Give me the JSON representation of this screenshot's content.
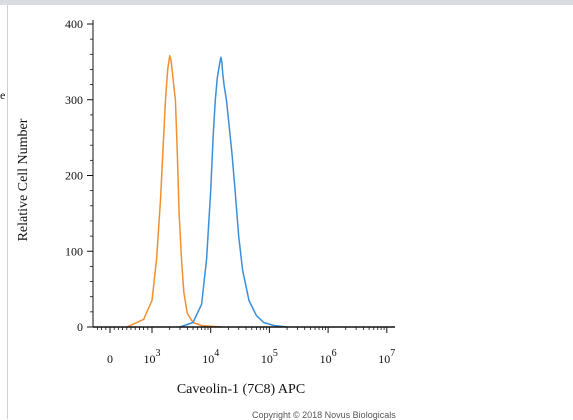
{
  "frame": {
    "edge_mark": "e"
  },
  "copyright": "Copyright © 2018 Novus Biologicals",
  "chart_data": {
    "type": "line",
    "title": "",
    "xlabel": "Caveolin-1 (7C8) APC",
    "ylabel": "Relative Cell Number",
    "x_scale": "log",
    "xlim": [
      -300,
      10000000
    ],
    "ylim": [
      0,
      400
    ],
    "grid": false,
    "legend": "none",
    "x_ticks": [
      {
        "value": 0,
        "base": "0",
        "exp": ""
      },
      {
        "value": 1000,
        "base": "10",
        "exp": "3"
      },
      {
        "value": 10000,
        "base": "10",
        "exp": "4"
      },
      {
        "value": 100000,
        "base": "10",
        "exp": "5"
      },
      {
        "value": 1000000,
        "base": "10",
        "exp": "6"
      },
      {
        "value": 10000000,
        "base": "10",
        "exp": "7"
      }
    ],
    "y_ticks": [
      0,
      100,
      200,
      300,
      400
    ],
    "series": [
      {
        "color": "#f0902f",
        "x": [
          400,
          800,
          1000,
          1200,
          1400,
          1550,
          1700,
          1850,
          2000,
          2100,
          2200,
          2350,
          2500,
          2700,
          2900,
          3200,
          3500,
          4000,
          5000,
          7000,
          10000,
          15000
        ],
        "y": [
          0,
          10,
          35,
          90,
          170,
          240,
          300,
          340,
          358,
          353,
          340,
          318,
          300,
          230,
          150,
          85,
          45,
          18,
          6,
          2,
          1,
          0
        ]
      },
      {
        "color": "#3a8fd9",
        "x": [
          3000,
          5000,
          7000,
          8500,
          10000,
          11000,
          12000,
          13000,
          14000,
          14500,
          15000,
          15500,
          16000,
          17000,
          18500,
          20000,
          23000,
          26000,
          30000,
          35000,
          45000,
          60000,
          80000,
          120000,
          200000
        ],
        "y": [
          0,
          6,
          30,
          90,
          180,
          250,
          300,
          330,
          345,
          352,
          356,
          349,
          335,
          318,
          300,
          275,
          230,
          180,
          120,
          75,
          35,
          15,
          6,
          2,
          0
        ]
      }
    ]
  }
}
